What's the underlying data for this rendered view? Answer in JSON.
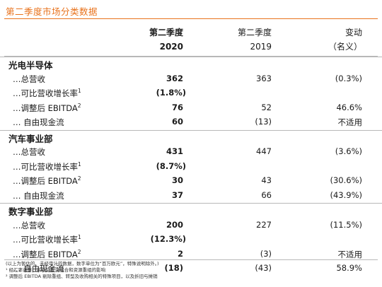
{
  "title": "第二季度市场分类数据",
  "header": {
    "col1_line1": "第二季度",
    "col1_line2": "2020",
    "col2_line1": "第二季度",
    "col2_line2": "2019",
    "col3_line1": "变动",
    "col3_line2": "（名义）"
  },
  "sections": [
    {
      "name": "光电半导体",
      "rows": [
        {
          "label": "…总营收",
          "sup": "",
          "v2020": "362",
          "v2019": "363",
          "change": "(0.3%)"
        },
        {
          "label": "…可比营收增长率",
          "sup": "1",
          "v2020": "(1.8%)",
          "v2019": "",
          "change": ""
        },
        {
          "label": "…调整后 EBITDA",
          "sup": "2",
          "v2020": "76",
          "v2019": "52",
          "change": "46.6%"
        },
        {
          "label": "… 自由现金流",
          "sup": "",
          "v2020": "60",
          "v2019": "(13)",
          "change": "不适用"
        }
      ]
    },
    {
      "name": "汽车事业部",
      "rows": [
        {
          "label": "…总营收",
          "sup": "",
          "v2020": "431",
          "v2019": "447",
          "change": "(3.6%)"
        },
        {
          "label": "…可比营收增长率",
          "sup": "1",
          "v2020": "(8.7%)",
          "v2019": "",
          "change": ""
        },
        {
          "label": "…调整后 EBITDA",
          "sup": "2",
          "v2020": "30",
          "v2019": "43",
          "change": "(30.6%)"
        },
        {
          "label": "… 自由现金流",
          "sup": "",
          "v2020": "37",
          "v2019": "66",
          "change": "(43.9%)"
        }
      ]
    },
    {
      "name": "数字事业部",
      "rows": [
        {
          "label": "…总营收",
          "sup": "",
          "v2020": "200",
          "v2019": "227",
          "change": "(11.5%)"
        },
        {
          "label": "…可比营收增长率",
          "sup": "1",
          "v2020": "(12.3%)",
          "v2019": "",
          "change": ""
        },
        {
          "label": "…调整后 EBITDA",
          "sup": "2",
          "v2020": "2",
          "v2019": "(3)",
          "change": "不适用"
        },
        {
          "label": "… 自由现金流",
          "sup": "",
          "v2020": "(18)",
          "v2019": "(43)",
          "change": "58.9%"
        }
      ]
    }
  ],
  "notes": [
    "(以上为暂估的、未经审计的数据，数字单位为“百万欧元”，特殊说明除外。)",
    "¹ 经汇率调整，并剔除投资组合和资源重组的影响",
    "² 调整后 EBITDA 剔除重组、转型及收购相关的特殊项目，以及折旧与摊销"
  ]
}
